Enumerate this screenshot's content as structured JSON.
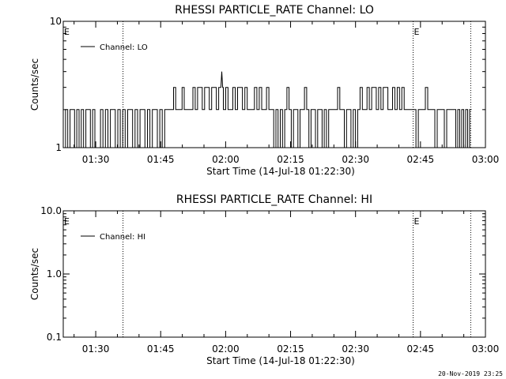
{
  "footer_timestamp": "20-Nov-2019 23:25",
  "chart_data": [
    {
      "type": "line",
      "title": "RHESSI PARTICLE_RATE Channel: LO",
      "xlabel": "Start Time (14-Jul-18 01:22:30)",
      "ylabel": "Counts/sec",
      "x_unit": "minutes after 01:22:30",
      "xlim": [
        0,
        97.5
      ],
      "ylim": [
        1,
        10
      ],
      "yscale": "log",
      "yticks": [
        "1",
        "10"
      ],
      "xticks": [
        {
          "label": "01:30",
          "t": 7.5
        },
        {
          "label": "01:45",
          "t": 22.5
        },
        {
          "label": "02:00",
          "t": 37.5
        },
        {
          "label": "02:15",
          "t": 52.5
        },
        {
          "label": "02:30",
          "t": 67.5
        },
        {
          "label": "02:45",
          "t": 82.5
        },
        {
          "label": "03:00",
          "t": 97.5
        }
      ],
      "vlines": [
        {
          "t": 13.8,
          "label": ""
        },
        {
          "t": 80.8,
          "label": "E"
        },
        {
          "t": 94.1,
          "label": ""
        }
      ],
      "left_marker": "E",
      "legend": {
        "label": "Channel: LO",
        "position": "top-left"
      },
      "grid": false,
      "series": [
        {
          "name": "Channel: LO",
          "t_start": 0,
          "t_end": 94.3,
          "segments": [
            {
              "from": 0,
              "to": 7.3,
              "pattern": [
                1,
                2,
                1,
                2,
                2,
                1,
                2,
                1,
                2,
                1,
                2,
                2,
                1,
                2
              ]
            },
            {
              "from": 7.3,
              "to": 8.6,
              "pattern": [
                1
              ]
            },
            {
              "from": 8.6,
              "to": 24.0,
              "pattern": [
                2,
                1,
                2,
                1,
                2,
                2,
                1,
                2,
                1,
                2,
                1,
                2,
                2,
                1,
                2,
                1,
                2,
                2,
                1,
                2,
                1,
                2,
                2,
                1,
                2,
                1,
                2
              ]
            },
            {
              "from": 24.0,
              "to": 29.4,
              "pattern": [
                2,
                2,
                2,
                3,
                2,
                2,
                2,
                3,
                2,
                2,
                2
              ]
            },
            {
              "from": 29.4,
              "to": 38.6,
              "pattern": [
                2,
                3,
                2,
                3,
                3,
                2,
                3,
                3,
                2,
                3,
                3,
                2,
                3,
                3,
                2,
                3,
                2
              ]
            },
            {
              "from": 38.6,
              "to": 48.6,
              "pattern": [
                2,
                3,
                2,
                3,
                3,
                2,
                3,
                2,
                2,
                2,
                3,
                2,
                3,
                2,
                2,
                3,
                2,
                2
              ]
            },
            {
              "from": 48.6,
              "to": 61.8,
              "pattern": [
                1,
                2,
                1,
                2,
                1,
                2,
                3,
                2,
                1,
                2,
                2,
                1,
                2,
                2,
                3,
                2,
                1,
                2,
                2,
                1,
                2,
                2,
                1,
                2,
                1,
                2
              ]
            },
            {
              "from": 61.8,
              "to": 68.0,
              "pattern": [
                2,
                2,
                2,
                3,
                2,
                2,
                1,
                2,
                2,
                1,
                2,
                1
              ]
            },
            {
              "from": 68.0,
              "to": 79.8,
              "pattern": [
                2,
                3,
                2,
                2,
                3,
                2,
                3,
                3,
                2,
                3,
                2,
                3,
                3,
                2,
                2,
                3,
                2,
                3,
                2,
                3,
                2,
                2
              ]
            },
            {
              "from": 79.8,
              "to": 90.2,
              "pattern": [
                2,
                2,
                2,
                1,
                2,
                2,
                2,
                3,
                2,
                2,
                2,
                1,
                2,
                2,
                2,
                1,
                2,
                2,
                2
              ]
            },
            {
              "from": 90.2,
              "to": 94.3,
              "pattern": [
                2,
                1,
                2,
                1,
                2,
                1,
                2,
                1,
                2
              ]
            }
          ],
          "spikes": [
            {
              "t": 36.6,
              "y": 4
            }
          ]
        }
      ]
    },
    {
      "type": "line",
      "title": "RHESSI PARTICLE_RATE Channel: HI",
      "xlabel": "Start Time (14-Jul-18 01:22:30)",
      "ylabel": "Counts/sec",
      "x_unit": "minutes after 01:22:30",
      "xlim": [
        0,
        97.5
      ],
      "ylim": [
        0.1,
        10
      ],
      "yscale": "log",
      "yticks": [
        "0.1",
        "1.0",
        "10.0"
      ],
      "xticks": [
        {
          "label": "01:30",
          "t": 7.5
        },
        {
          "label": "01:45",
          "t": 22.5
        },
        {
          "label": "02:00",
          "t": 37.5
        },
        {
          "label": "02:15",
          "t": 52.5
        },
        {
          "label": "02:30",
          "t": 67.5
        },
        {
          "label": "02:45",
          "t": 82.5
        },
        {
          "label": "03:00",
          "t": 97.5
        }
      ],
      "vlines": [
        {
          "t": 13.8,
          "label": ""
        },
        {
          "t": 80.8,
          "label": "E"
        },
        {
          "t": 94.1,
          "label": ""
        }
      ],
      "left_marker": "E",
      "legend": {
        "label": "Channel: HI",
        "position": "top-left"
      },
      "grid": false,
      "series": [
        {
          "name": "Channel: HI",
          "segments": [],
          "spikes": []
        }
      ]
    }
  ]
}
